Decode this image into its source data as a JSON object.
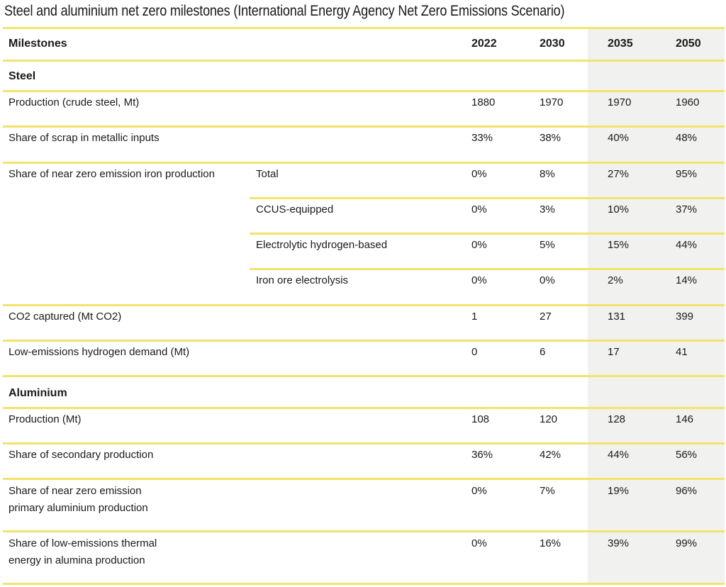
{
  "title": "Steel and aluminium net zero milestones (International Energy Agency Net Zero Emissions Scenario)",
  "header": {
    "label": "Milestones",
    "years": [
      "2022",
      "2030",
      "2035",
      "2050"
    ]
  },
  "sections": {
    "steel": {
      "label": "Steel",
      "rows": [
        {
          "label": "Production (crude steel, Mt)",
          "values": [
            "1880",
            "1970",
            "1970",
            "1960"
          ]
        },
        {
          "label": "Share of scrap in metallic inputs",
          "values": [
            "33%",
            "38%",
            "40%",
            "48%"
          ]
        },
        {
          "label": "Share of near zero emission iron production",
          "sub": "Total",
          "values": [
            "0%",
            "8%",
            "27%",
            "95%"
          ]
        },
        {
          "sub": "CCUS-equipped",
          "values": [
            "0%",
            "3%",
            "10%",
            "37%"
          ]
        },
        {
          "sub": "Electrolytic hydrogen-based",
          "values": [
            "0%",
            "5%",
            "15%",
            "44%"
          ]
        },
        {
          "sub": "Iron ore electrolysis",
          "values": [
            "0%",
            "0%",
            "2%",
            "14%"
          ]
        },
        {
          "label": "CO2 captured (Mt CO2)",
          "values": [
            "1",
            "27",
            "131",
            "399"
          ]
        },
        {
          "label": "Low-emissions hydrogen demand (Mt)",
          "values": [
            "0",
            "6",
            "17",
            "41"
          ]
        }
      ]
    },
    "aluminium": {
      "label": "Aluminium",
      "rows": [
        {
          "label": "Production (Mt)",
          "values": [
            "108",
            "120",
            "128",
            "146"
          ]
        },
        {
          "label": "Share of secondary production",
          "values": [
            "36%",
            "42%",
            "44%",
            "56%"
          ]
        },
        {
          "label": "Share of near zero emission primary aluminium production",
          "values": [
            "0%",
            "7%",
            "19%",
            "96%"
          ]
        },
        {
          "label": "Share of low-emissions thermal energy in alumina production",
          "values": [
            "0%",
            "16%",
            "39%",
            "99%"
          ]
        }
      ]
    }
  },
  "colors": {
    "rule": "#f2e46a",
    "shade": "#f1f2f0"
  }
}
